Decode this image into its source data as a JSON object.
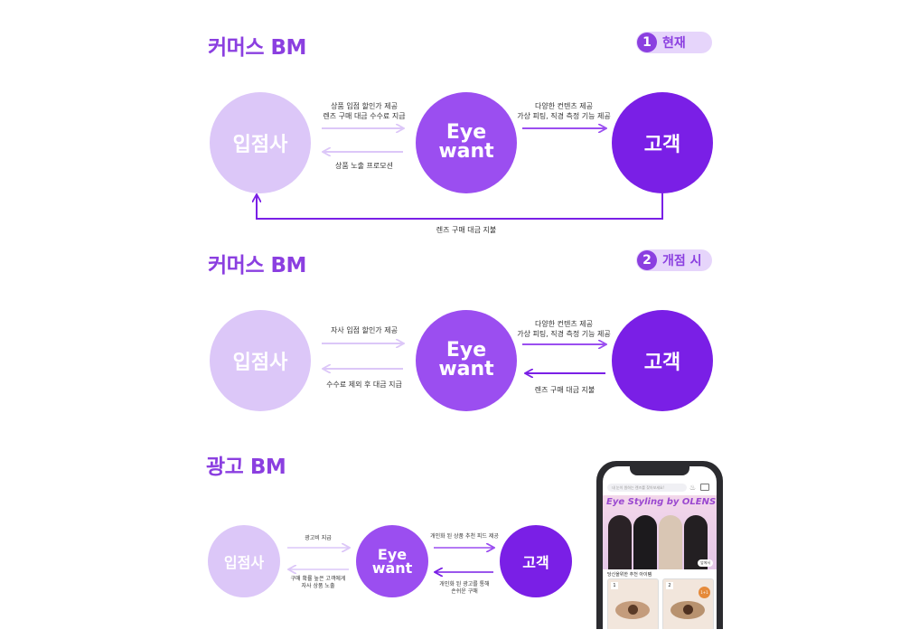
{
  "colors": {
    "light": "#dcc7f8",
    "mid": "#9b4ef0",
    "dark": "#7a1fe6",
    "accent": "#8b3fe0"
  },
  "section1": {
    "title": "커머스 BM",
    "badge_num": "1",
    "badge_text": "현재",
    "node_left": "입점사",
    "node_center_line1": "Eye",
    "node_center_line2": "want",
    "node_right": "고객",
    "label_top_left": "상품 입점 할인가 제공\n렌즈 구매 대금 수수료 지급",
    "label_bottom_left": "상품 노출 프로모션",
    "label_top_right": "다양한 컨텐츠 제공\n가상 피팅, 직경 측정 기능 제공",
    "label_return": "렌즈 구매 대금 지불"
  },
  "section2": {
    "title": "커머스 BM",
    "badge_num": "2",
    "badge_text": "개점 시",
    "node_left": "입점사",
    "node_center_line1": "Eye",
    "node_center_line2": "want",
    "node_right": "고객",
    "label_top_left": "자사 입점 할인가 제공",
    "label_bottom_left": "수수료 제외 후 대금 지급",
    "label_top_right": "다양한 컨텐츠 제공\n가상 피팅, 직경 측정 기능 제공",
    "label_bottom_right": "렌즈 구매 대금 지불"
  },
  "section3": {
    "title": "광고 BM",
    "node_left": "입점사",
    "node_center_line1": "Eye",
    "node_center_line2": "want",
    "node_right": "고객",
    "label_top_left": "광고비 지급",
    "label_bottom_left": "구매 확률 높은 고객에게\n자사 상품 노출",
    "label_top_right": "개인화 된 상품 추천 피드 제공",
    "label_bottom_right": "개인화 된 광고를 통해\n손쉬운 구매"
  },
  "phone": {
    "search_placeholder": "내 눈이 원하는 렌즈를 찾아보세요!",
    "banner_title": "Eye Styling by OLENS",
    "banner_tag": "앞에서",
    "section_label": "당신을위한 추천 아이템",
    "card1_num": "1",
    "card2_num": "2",
    "promo": "1+1"
  }
}
